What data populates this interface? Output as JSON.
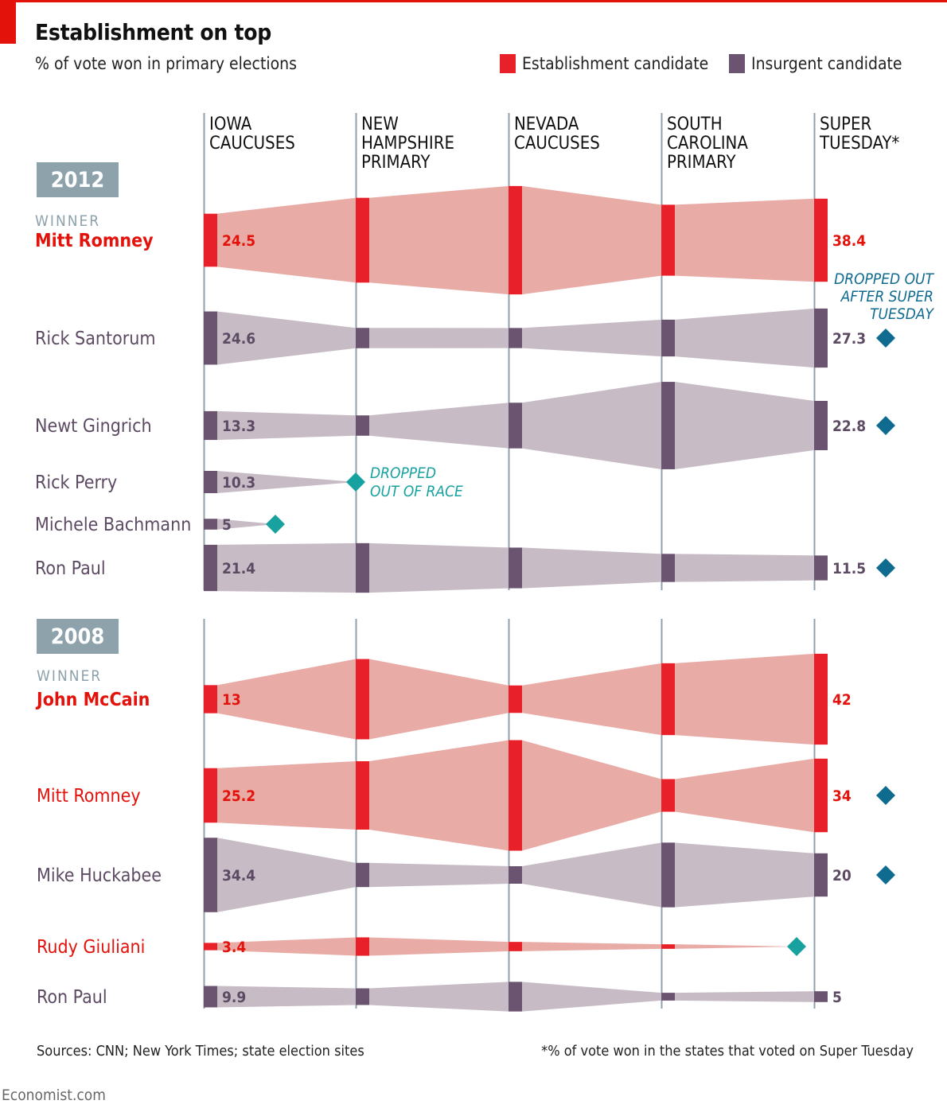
{
  "title": "Establishment on top",
  "subtitle": "% of vote won in primary elections",
  "legend": {
    "establishment": "Establishment candidate",
    "insurgent": "Insurgent candidate"
  },
  "colors": {
    "establishment_bar": "#e8202a",
    "establishment_band": "#e9aba6",
    "insurgent_bar": "#6b5470",
    "insurgent_band": "#c7bcc6",
    "dropout_marker": "#17a2a0",
    "after_super_marker": "#0f6b90",
    "year_box": "#8ea2ac",
    "accent": "#e3120b"
  },
  "footer": {
    "sources": "Sources: CNN; New York Times; state election sites",
    "note": "*% of vote won in the states that voted on Super Tuesday",
    "credit": "Economist.com"
  },
  "chart_data": {
    "type": "area",
    "x": [
      [
        "IOWA",
        "CAUCUSES"
      ],
      [
        "NEW",
        "HAMPSHIRE",
        "PRIMARY"
      ],
      [
        "NEVADA",
        "CAUCUSES"
      ],
      [
        "SOUTH",
        "CAROLINA",
        "PRIMARY"
      ],
      [
        "SUPER",
        "TUESDAY*"
      ]
    ],
    "winner_label": "WINNER",
    "annotations": {
      "dropped_out_of_race": [
        "DROPPED",
        "OUT OF RACE"
      ],
      "dropped_after_super": [
        "DROPPED OUT",
        "AFTER SUPER",
        "TUESDAY"
      ]
    },
    "panels": [
      {
        "year": "2012",
        "series": [
          {
            "name": "Mitt Romney",
            "group": "establishment",
            "winner": true,
            "values": [
              24.5,
              39.2,
              50.1,
              32.8,
              38.4
            ],
            "labels": [
              "24.5",
              "",
              "",
              "",
              "38.4"
            ],
            "after_super_dropout": false
          },
          {
            "name": "Rick Santorum",
            "group": "insurgent",
            "winner": false,
            "values": [
              24.6,
              9.4,
              9.3,
              17.0,
              27.3
            ],
            "labels": [
              "24.6",
              "",
              "",
              "",
              "27.3"
            ],
            "after_super_dropout": true
          },
          {
            "name": "Newt Gingrich",
            "group": "insurgent",
            "winner": false,
            "values": [
              13.3,
              9.4,
              21.1,
              40.4,
              22.8
            ],
            "labels": [
              "13.3",
              "",
              "",
              "",
              "22.8"
            ],
            "after_super_dropout": true
          },
          {
            "name": "Rick Perry",
            "group": "insurgent",
            "winner": false,
            "values": [
              10.3
            ],
            "labels": [
              "10.3"
            ],
            "dropout_after": 0
          },
          {
            "name": "Michele Bachmann",
            "group": "insurgent",
            "winner": false,
            "values": [
              5
            ],
            "labels": [
              "5"
            ],
            "dropout_after": 0
          },
          {
            "name": "Ron Paul",
            "group": "insurgent",
            "winner": false,
            "values": [
              21.4,
              22.9,
              18.8,
              13.0,
              11.5
            ],
            "labels": [
              "21.4",
              "",
              "",
              "",
              "11.5"
            ],
            "after_super_dropout": true
          }
        ]
      },
      {
        "year": "2008",
        "series": [
          {
            "name": "John McCain",
            "group": "establishment",
            "winner": true,
            "values": [
              13,
              37.1,
              12.7,
              33.2,
              42
            ],
            "labels": [
              "13",
              "",
              "",
              "",
              "42"
            ],
            "after_super_dropout": false
          },
          {
            "name": "Mitt Romney",
            "group": "establishment",
            "winner": false,
            "values": [
              25.2,
              31.6,
              51.1,
              15.1,
              34
            ],
            "labels": [
              "25.2",
              "",
              "",
              "",
              "34"
            ],
            "after_super_dropout": true
          },
          {
            "name": "Mike Huckabee",
            "group": "insurgent",
            "winner": false,
            "values": [
              34.4,
              11.2,
              8.1,
              29.9,
              20
            ],
            "labels": [
              "34.4",
              "",
              "",
              "",
              "20"
            ],
            "after_super_dropout": true
          },
          {
            "name": "Rudy Giuliani",
            "group": "establishment",
            "winner": false,
            "values": [
              3.4,
              8.5,
              4.3,
              2.1
            ],
            "labels": [
              "3.4",
              "",
              "",
              ""
            ],
            "dropout_after": 3
          },
          {
            "name": "Ron Paul",
            "group": "insurgent",
            "winner": false,
            "values": [
              9.9,
              7.7,
              13.7,
              3.6,
              5
            ],
            "labels": [
              "9.9",
              "",
              "",
              "",
              "5"
            ],
            "after_super_dropout": false
          }
        ]
      }
    ]
  }
}
